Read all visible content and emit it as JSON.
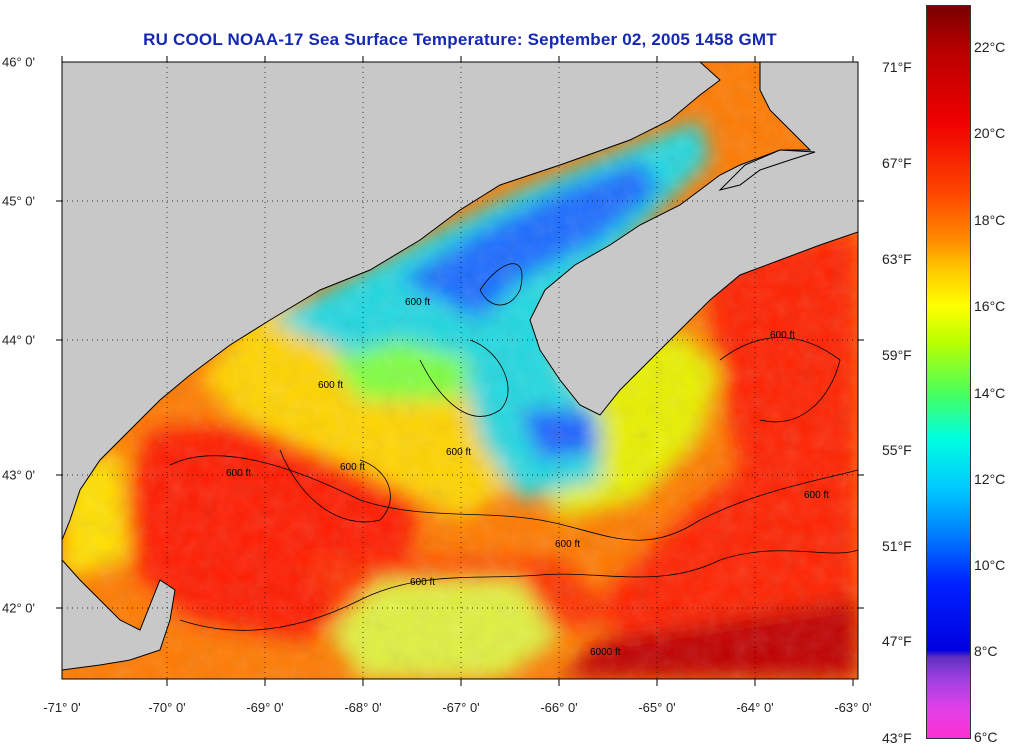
{
  "title": "RU COOL  NOAA-17  Sea Surface Temperature:  September 02, 2005 1458 GMT",
  "map": {
    "lon_labels": [
      "-71° 0'",
      "-70° 0'",
      "-69° 0'",
      "-68° 0'",
      "-67° 0'",
      "-66° 0'",
      "-65° 0'",
      "-64° 0'",
      "-63° 0'"
    ],
    "lat_labels": [
      "46° 0'",
      "45° 0'",
      "44° 0'",
      "43° 0'",
      "42° 0'"
    ],
    "contour_label": "600 ft",
    "contour_label_deep": "6000 ft",
    "colors": {
      "land": "#c8c8c8",
      "cold": "#1c6cff",
      "cool": "#19c8e8",
      "mild": "#ffe600",
      "warm": "#ff8c00",
      "hot": "#ff2400",
      "hottest": "#b40000"
    }
  },
  "colorbar": {
    "celsius_labels": [
      "22°C",
      "20°C",
      "18°C",
      "16°C",
      "14°C",
      "12°C",
      "10°C",
      "8°C",
      "6°C"
    ],
    "fahrenheit_labels": [
      "71°F",
      "67°F",
      "63°F",
      "59°F",
      "55°F",
      "51°F",
      "47°F",
      "43°F"
    ]
  }
}
